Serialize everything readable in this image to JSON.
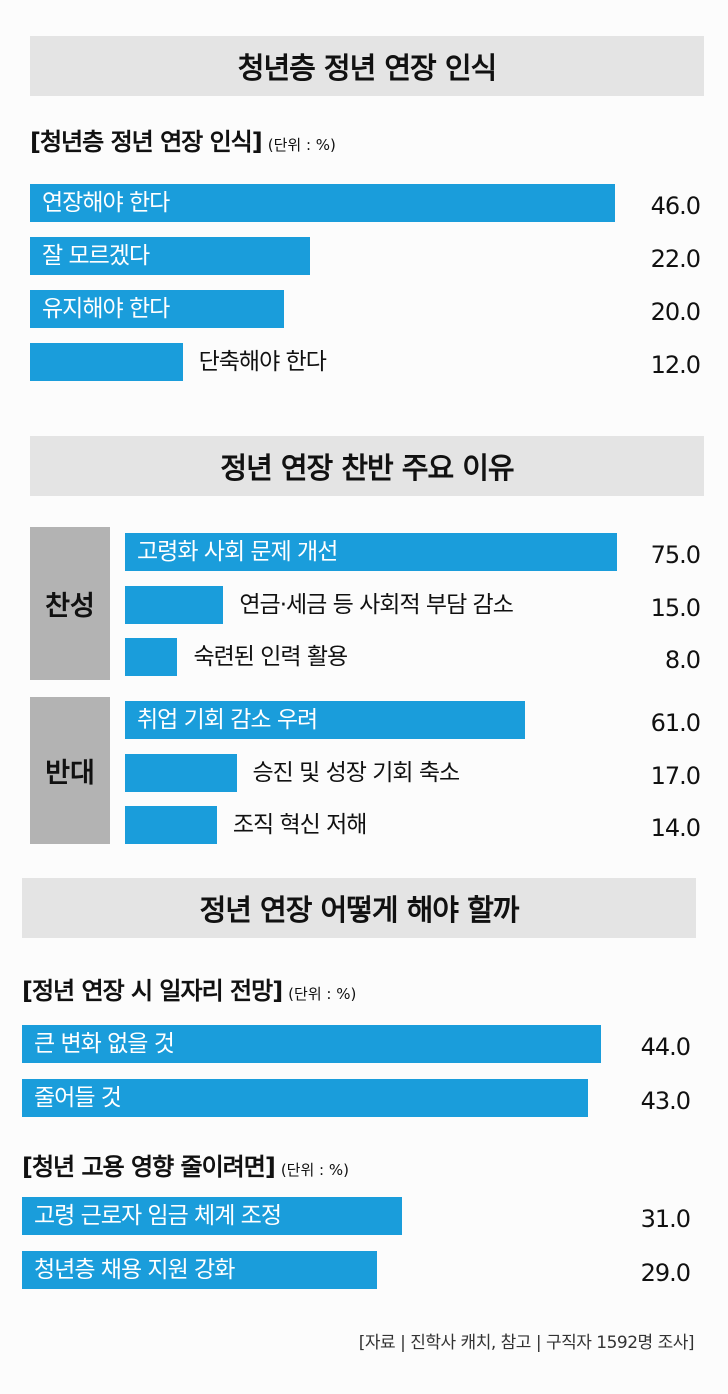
{
  "sections": [
    {
      "title": "청년층 정년 연장 인식"
    },
    {
      "title": "정년 연장 찬반 주요 이유"
    },
    {
      "title": "정년 연장 어떻게 해야 할까"
    }
  ],
  "source": "[자료 | 진학사 캐치, 참고 | 구직자 1592명 조사]",
  "chart_data": [
    {
      "type": "bar",
      "title": "[청년층 정년 연장 인식]",
      "unit": "(단위 : %)",
      "categories": [
        "연장해야 한다",
        "잘 모르겠다",
        "유지해야 한다",
        "단축해야 한다"
      ],
      "values": [
        46.0,
        22.0,
        20.0,
        12.0
      ],
      "value_labels": [
        "46.0",
        "22.0",
        "20.0",
        "12.0"
      ],
      "bar_color": "#1a9ddb"
    },
    {
      "type": "bar",
      "title": "",
      "groups": [
        {
          "name": "찬성",
          "categories": [
            "고령화 사회 문제 개선",
            "연금·세금 등 사회적 부담 감소",
            "숙련된 인력 활용"
          ],
          "values": [
            75.0,
            15.0,
            8.0
          ],
          "value_labels": [
            "75.0",
            "15.0",
            "8.0"
          ]
        },
        {
          "name": "반대",
          "categories": [
            "취업 기회 감소 우려",
            "승진 및 성장 기회 축소",
            "조직 혁신 저해"
          ],
          "values": [
            61.0,
            17.0,
            14.0
          ],
          "value_labels": [
            "61.0",
            "17.0",
            "14.0"
          ]
        }
      ],
      "bar_color": "#1a9ddb",
      "group_color": "#b3b3b3"
    },
    {
      "type": "bar",
      "title": "[정년 연장 시 일자리 전망]",
      "unit": "(단위 : %)",
      "categories": [
        "큰 변화 없을 것",
        "줄어들 것"
      ],
      "values": [
        44.0,
        43.0
      ],
      "value_labels": [
        "44.0",
        "43.0"
      ],
      "bar_color": "#1a9ddb"
    },
    {
      "type": "bar",
      "title": "[청년 고용 영향 줄이려면]",
      "unit": "(단위 : %)",
      "categories": [
        "고령 근로자 임금 체계 조정",
        "청년층 채용 지원 강화"
      ],
      "values": [
        31.0,
        29.0
      ],
      "value_labels": [
        "31.0",
        "29.0"
      ],
      "bar_color": "#1a9ddb"
    }
  ]
}
